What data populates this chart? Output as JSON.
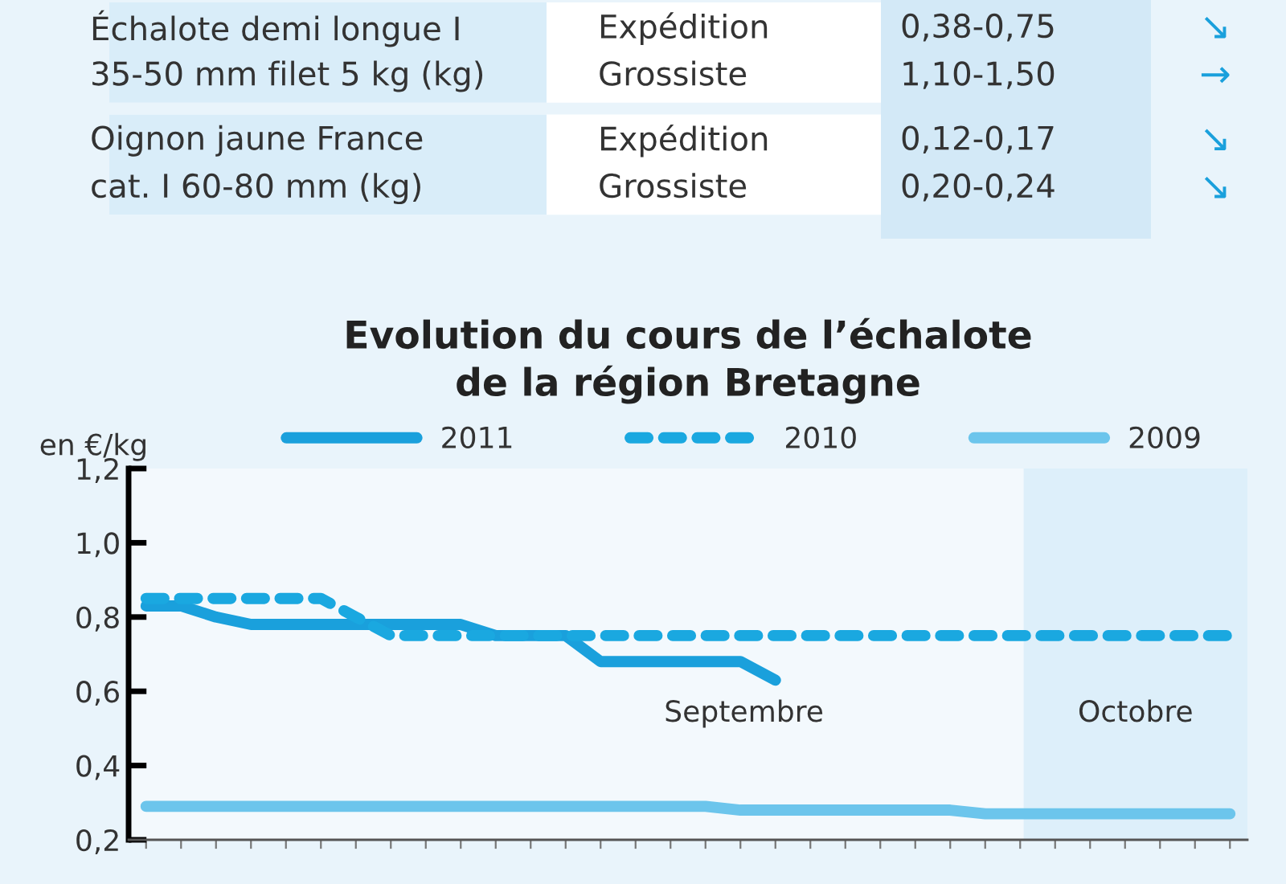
{
  "chart_data": [
    {
      "type": "other",
      "annotations": [
        "Échalote demi longue I",
        "Expédition",
        "0,38-0,75",
        "↘",
        "35-50 mm filet 5 kg (kg)",
        "Grossiste",
        "1,10-1,50",
        "→",
        "Oignon jaune France",
        "Expédition",
        "0,12-0,17",
        "↘",
        "cat. I 60-80 mm (kg)",
        "Grossiste",
        "0,20-0,24",
        "↘"
      ]
    },
    {
      "type": "line",
      "title": "Evolution du cours de l’échalote\nde la région Bretagne",
      "ylabel": "en €/kg",
      "categories": [
        null,
        null,
        null,
        null,
        null,
        null,
        null,
        null,
        null,
        null,
        null,
        null,
        null,
        null,
        null,
        null,
        null,
        null,
        null,
        null,
        null,
        null,
        null,
        null,
        null,
        null,
        null,
        null,
        null,
        null,
        null,
        null
      ],
      "series": [
        {
          "name": "2011",
          "color": "#1aa0dc",
          "line_style": "solid",
          "values": [
            0.83,
            0.83,
            0.8,
            0.78,
            0.78,
            0.78,
            0.78,
            0.78,
            0.78,
            0.78,
            0.75,
            0.75,
            0.75,
            0.68,
            0.68,
            0.68,
            0.68,
            0.68,
            0.63,
            null,
            null,
            null,
            null,
            null,
            null,
            null,
            null,
            null,
            null,
            null,
            null,
            null
          ]
        },
        {
          "name": "2010",
          "color": "#1aa8e0",
          "line_style": "dashed",
          "values": [
            0.85,
            0.85,
            0.85,
            0.85,
            0.85,
            0.85,
            0.8,
            0.75,
            0.75,
            0.75,
            0.75,
            0.75,
            0.75,
            0.75,
            0.75,
            0.75,
            0.75,
            0.75,
            0.75,
            0.75,
            0.75,
            0.75,
            0.75,
            0.75,
            0.75,
            0.75,
            0.75,
            0.75,
            0.75,
            0.75,
            0.75,
            0.75
          ]
        },
        {
          "name": "2009",
          "color": "#6cc5ec",
          "line_style": "solid",
          "values": [
            0.29,
            0.29,
            0.29,
            0.29,
            0.29,
            0.29,
            0.29,
            0.29,
            0.29,
            0.29,
            0.29,
            0.29,
            0.29,
            0.29,
            0.29,
            0.29,
            0.29,
            0.28,
            0.28,
            0.28,
            0.28,
            0.28,
            0.28,
            0.28,
            0.27,
            0.27,
            0.27,
            0.27,
            0.27,
            0.27,
            0.27,
            0.27
          ]
        }
      ],
      "annotations": [
        "Septembre",
        "Octobre"
      ],
      "ylim": [
        0.2,
        1.2
      ],
      "yticks": [
        {
          "value": 0.2,
          "label": "0,2"
        },
        {
          "value": 0.4,
          "label": "0,4"
        },
        {
          "value": 0.6,
          "label": "0,6"
        },
        {
          "value": 0.8,
          "label": "0,8"
        },
        {
          "value": 1.0,
          "label": "1,0"
        },
        {
          "value": 1.2,
          "label": "1,2"
        }
      ],
      "tick_labels": "y",
      "legend": "top",
      "grid": false,
      "marker": "none"
    }
  ]
}
